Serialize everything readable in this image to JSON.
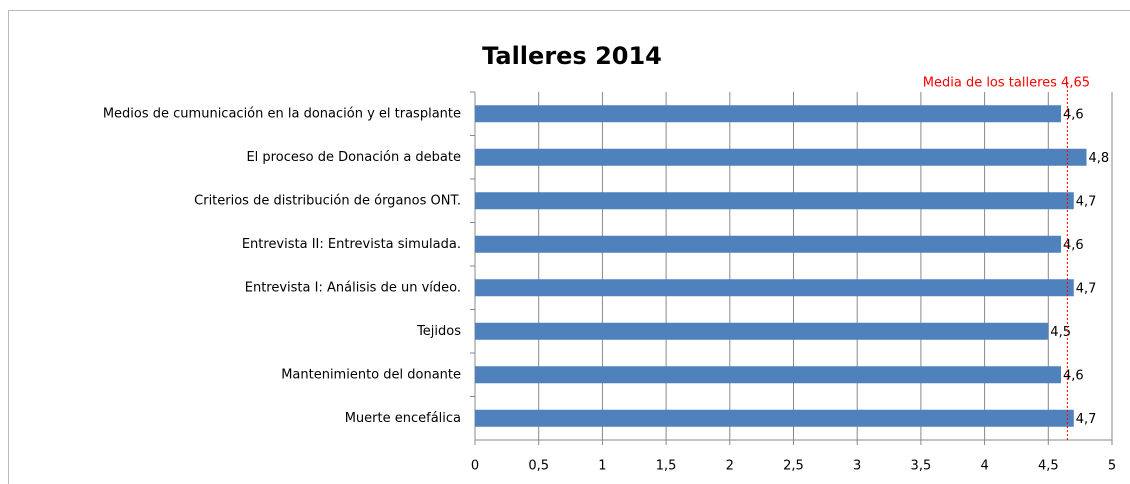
{
  "chart_data": {
    "type": "barh",
    "title": "Talleres 2014",
    "categories": [
      "Medios de cumunicación en la donación y el trasplante",
      "El proceso de Donación a debate",
      "Criterios de distribución de órganos ONT.",
      "Entrevista II: Entrevista simulada.",
      "Entrevista I: Análisis de un vídeo.",
      "Tejidos",
      "Mantenimiento del donante",
      "Muerte encefálica"
    ],
    "values": [
      4.6,
      4.8,
      4.7,
      4.6,
      4.7,
      4.5,
      4.6,
      4.7
    ],
    "value_labels": [
      "4,6",
      "4,8",
      "4,7",
      "4,6",
      "4,7",
      "4,5",
      "4,6",
      "4,7"
    ],
    "color": "#4f81bd",
    "xlim": [
      0,
      5
    ],
    "xticks": [
      0,
      {
        "value": 0.5,
        "label": "0,5"
      },
      1,
      {
        "value": 1.5,
        "label": "1,5"
      },
      2,
      {
        "value": 2.5,
        "label": "2,5"
      },
      3,
      {
        "value": 3.5,
        "label": "3,5"
      },
      4,
      {
        "value": 4.5,
        "label": "4,5"
      },
      5
    ],
    "grid": true,
    "reference_line": {
      "value": 4.65,
      "label": "Media de los talleres 4,65",
      "color": "#ff0000"
    }
  }
}
